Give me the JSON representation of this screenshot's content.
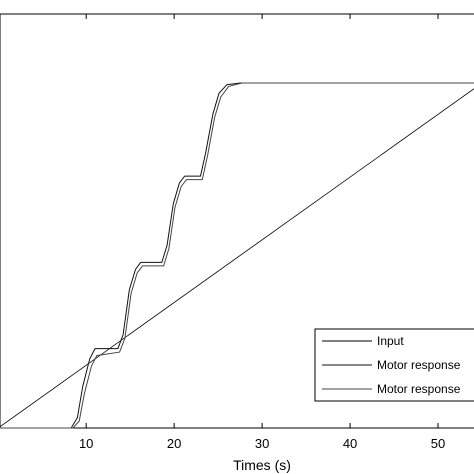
{
  "chart_data": {
    "type": "line",
    "title": "",
    "xlabel": "Times (s)",
    "ylabel": "",
    "xlim": [
      0.2,
      55
    ],
    "ylim": [
      0,
      1.2
    ],
    "xticks": [
      10,
      20,
      30,
      40,
      50
    ],
    "xtick_labels": [
      "10",
      "20",
      "30",
      "40",
      "50"
    ],
    "grid": false,
    "legend_position": "bottom-right",
    "series": [
      {
        "name": "Input",
        "color": "#000000",
        "points": [
          [
            0,
            0
          ],
          [
            55,
            1
          ]
        ]
      },
      {
        "name": "Motor response",
        "color": "#111111",
        "points": [
          [
            0,
            0
          ],
          [
            8.3,
            0
          ],
          [
            9.0,
            0.03
          ],
          [
            9.6,
            0.12
          ],
          [
            10.4,
            0.2
          ],
          [
            11,
            0.23
          ],
          [
            13.6,
            0.23
          ],
          [
            14.2,
            0.27
          ],
          [
            14.9,
            0.4
          ],
          [
            15.6,
            0.46
          ],
          [
            16.2,
            0.48
          ],
          [
            18.6,
            0.48
          ],
          [
            19.2,
            0.53
          ],
          [
            19.9,
            0.65
          ],
          [
            20.6,
            0.71
          ],
          [
            21.2,
            0.73
          ],
          [
            23.0,
            0.73
          ],
          [
            23.6,
            0.8
          ],
          [
            24.4,
            0.91
          ],
          [
            25.1,
            0.97
          ],
          [
            26.0,
            0.995
          ],
          [
            27.5,
            1.0
          ],
          [
            55,
            1.0
          ]
        ]
      },
      {
        "name": "Motor response",
        "color": "#444444",
        "points": [
          [
            0,
            0
          ],
          [
            8.5,
            0
          ],
          [
            9.2,
            0.02
          ],
          [
            9.8,
            0.1
          ],
          [
            10.6,
            0.18
          ],
          [
            11.2,
            0.21
          ],
          [
            13.8,
            0.22
          ],
          [
            14.4,
            0.26
          ],
          [
            15.1,
            0.39
          ],
          [
            15.8,
            0.45
          ],
          [
            16.4,
            0.47
          ],
          [
            18.8,
            0.47
          ],
          [
            19.4,
            0.52
          ],
          [
            20.1,
            0.64
          ],
          [
            20.8,
            0.7
          ],
          [
            21.4,
            0.72
          ],
          [
            23.2,
            0.72
          ],
          [
            23.8,
            0.79
          ],
          [
            24.6,
            0.9
          ],
          [
            25.3,
            0.96
          ],
          [
            26.2,
            0.99
          ],
          [
            27.7,
            1.0
          ],
          [
            55,
            1.0
          ]
        ]
      }
    ]
  },
  "legend": {
    "items": [
      {
        "label": "Input",
        "color": "#000000"
      },
      {
        "label": "Motor response",
        "color": "#111111"
      },
      {
        "label": "Motor response",
        "color": "#444444"
      }
    ]
  }
}
